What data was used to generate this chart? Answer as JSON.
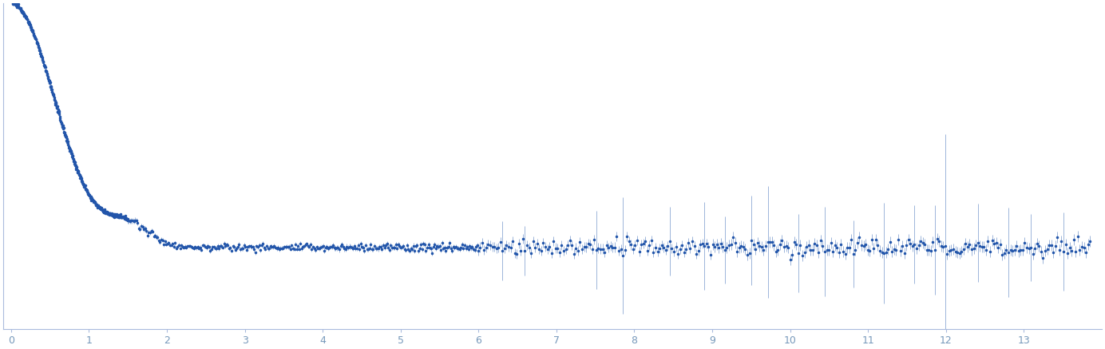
{
  "title": "",
  "xlabel": "",
  "ylabel": "",
  "xlim": [
    -0.1,
    14.0
  ],
  "ylim": [
    -0.02,
    0.28
  ],
  "x_ticks": [
    0,
    1,
    2,
    3,
    4,
    5,
    6,
    7,
    8,
    9,
    10,
    11,
    12,
    13
  ],
  "dot_color": "#2255aa",
  "error_color": "#7799cc",
  "axis_color": "#aabbdd",
  "background_color": "#ffffff",
  "tick_color": "#aabbdd",
  "tick_label_color": "#7799bb",
  "rg": 2.2,
  "I0": 0.28,
  "baseline": 0.055
}
